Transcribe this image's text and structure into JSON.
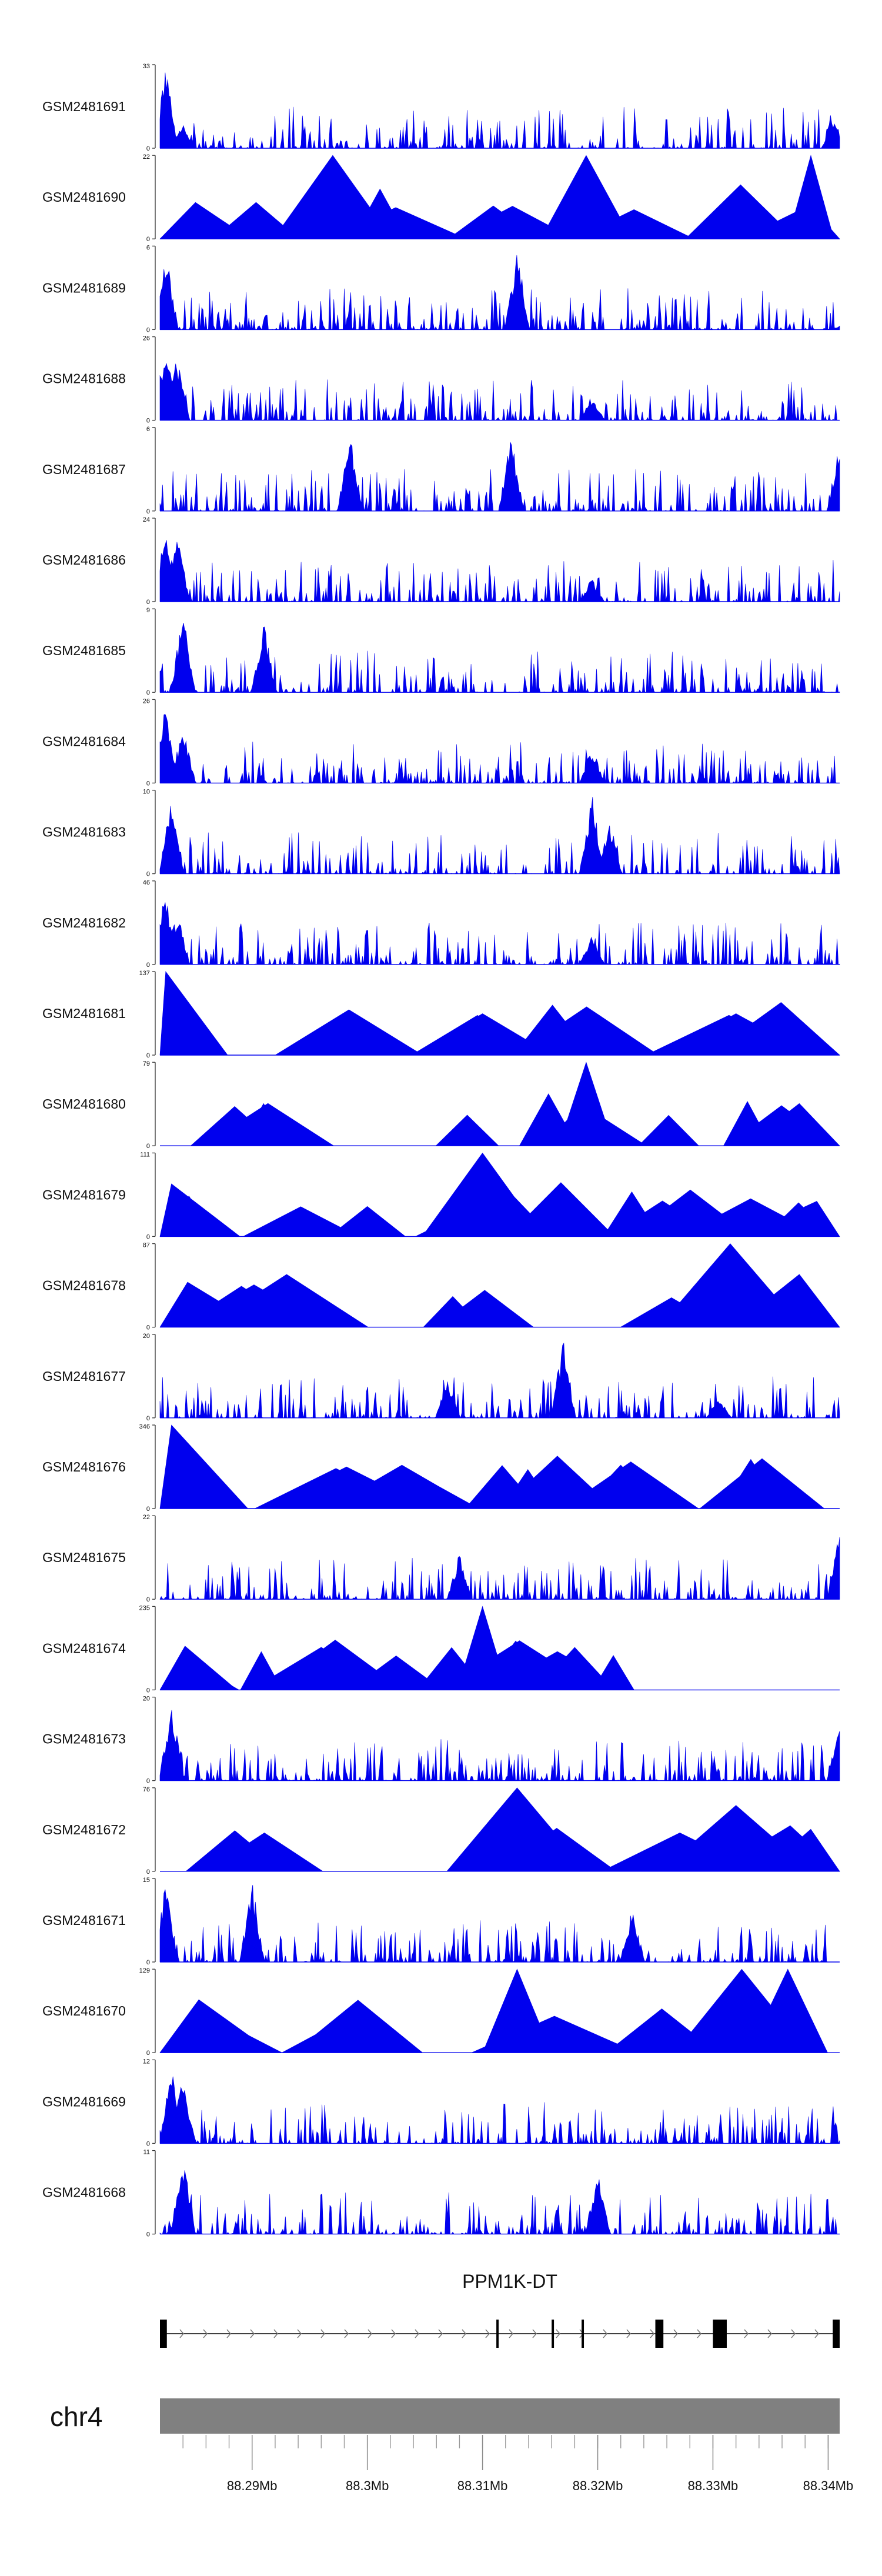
{
  "chart_data": {
    "type": "area",
    "title": "",
    "colors": {
      "track": "#0000ee",
      "axis": "#333333",
      "ideogram": "#808080",
      "gene": "#000000"
    },
    "region": {
      "chromosome": "chr4",
      "start": 88282000,
      "end": 88341000
    },
    "tracks": [
      {
        "name": "GSM2481691",
        "ymax": 33,
        "pattern": "dense",
        "peaks": [
          [
            88282500,
            33
          ],
          [
            88284000,
            10
          ],
          [
            88340500,
            12
          ]
        ]
      },
      {
        "name": "GSM2481690",
        "ymax": 22,
        "pattern": "sparse",
        "peaks": [
          [
            88297000,
            22
          ],
          [
            88319000,
            22
          ],
          [
            88338500,
            22
          ]
        ]
      },
      {
        "name": "GSM2481689",
        "ymax": 6,
        "pattern": "dense",
        "peaks": [
          [
            88282500,
            6
          ],
          [
            88313000,
            6
          ]
        ]
      },
      {
        "name": "GSM2481688",
        "ymax": 26,
        "pattern": "dense",
        "peaks": [
          [
            88282500,
            26
          ],
          [
            88283500,
            21
          ],
          [
            88319500,
            8
          ]
        ]
      },
      {
        "name": "GSM2481687",
        "ymax": 6,
        "pattern": "dense",
        "peaks": [
          [
            88298500,
            6
          ],
          [
            88312500,
            6
          ],
          [
            88341000,
            5
          ]
        ]
      },
      {
        "name": "GSM2481686",
        "ymax": 24,
        "pattern": "dense",
        "peaks": [
          [
            88282500,
            24
          ],
          [
            88283500,
            20
          ],
          [
            88319500,
            7
          ]
        ]
      },
      {
        "name": "GSM2481685",
        "ymax": 9,
        "pattern": "dense",
        "peaks": [
          [
            88284000,
            9
          ],
          [
            88291000,
            8
          ]
        ]
      },
      {
        "name": "GSM2481684",
        "ymax": 26,
        "pattern": "dense",
        "peaks": [
          [
            88282500,
            26
          ],
          [
            88284000,
            20
          ],
          [
            88319500,
            12
          ]
        ]
      },
      {
        "name": "GSM2481683",
        "ymax": 10,
        "pattern": "dense",
        "peaks": [
          [
            88283000,
            10
          ],
          [
            88319500,
            10
          ],
          [
            88321000,
            7
          ]
        ]
      },
      {
        "name": "GSM2481682",
        "ymax": 46,
        "pattern": "dense",
        "peaks": [
          [
            88282500,
            46
          ],
          [
            88283500,
            30
          ],
          [
            88319500,
            17
          ]
        ]
      },
      {
        "name": "GSM2481681",
        "ymax": 137,
        "pattern": "sparse",
        "peaks": [
          [
            88282500,
            137
          ],
          [
            88310000,
            68
          ],
          [
            88332000,
            68
          ]
        ]
      },
      {
        "name": "GSM2481680",
        "ymax": 79,
        "pattern": "sparse",
        "peaks": [
          [
            88291000,
            40
          ],
          [
            88319000,
            79
          ],
          [
            88337500,
            40
          ]
        ]
      },
      {
        "name": "GSM2481679",
        "ymax": 111,
        "pattern": "sparse",
        "peaks": [
          [
            88283000,
            70
          ],
          [
            88310000,
            111
          ],
          [
            88300000,
            40
          ]
        ]
      },
      {
        "name": "GSM2481678",
        "ymax": 87,
        "pattern": "sparse",
        "peaks": [
          [
            88293000,
            55
          ],
          [
            88331500,
            87
          ],
          [
            88337500,
            55
          ]
        ]
      },
      {
        "name": "GSM2481677",
        "ymax": 20,
        "pattern": "dense",
        "peaks": [
          [
            88307000,
            10
          ],
          [
            88317000,
            20
          ],
          [
            88330500,
            5
          ]
        ]
      },
      {
        "name": "GSM2481676",
        "ymax": 346,
        "pattern": "sparse",
        "peaks": [
          [
            88283000,
            346
          ],
          [
            88303000,
            180
          ],
          [
            88322000,
            180
          ]
        ]
      },
      {
        "name": "GSM2481675",
        "ymax": 22,
        "pattern": "dense",
        "peaks": [
          [
            88308000,
            12
          ],
          [
            88341000,
            22
          ]
        ]
      },
      {
        "name": "GSM2481674",
        "ymax": 235,
        "pattern": "sparse",
        "peaks": [
          [
            88310000,
            235
          ],
          [
            88296000,
            120
          ],
          [
            88318000,
            120
          ]
        ]
      },
      {
        "name": "GSM2481673",
        "ymax": 20,
        "pattern": "dense",
        "peaks": [
          [
            88283000,
            20
          ],
          [
            88341000,
            16
          ]
        ]
      },
      {
        "name": "GSM2481672",
        "ymax": 76,
        "pattern": "sparse",
        "peaks": [
          [
            88313000,
            76
          ],
          [
            88332000,
            60
          ]
        ]
      },
      {
        "name": "GSM2481671",
        "ymax": 15,
        "pattern": "dense",
        "peaks": [
          [
            88282500,
            15
          ],
          [
            88290000,
            15
          ],
          [
            88323000,
            10
          ]
        ]
      },
      {
        "name": "GSM2481670",
        "ymax": 129,
        "pattern": "sparse",
        "peaks": [
          [
            88313000,
            129
          ],
          [
            88332500,
            129
          ],
          [
            88336500,
            129
          ]
        ]
      },
      {
        "name": "GSM2481669",
        "ymax": 12,
        "pattern": "dense",
        "peaks": [
          [
            88283000,
            12
          ],
          [
            88284000,
            10
          ]
        ]
      },
      {
        "name": "GSM2481668",
        "ymax": 11,
        "pattern": "dense",
        "peaks": [
          [
            88284000,
            11
          ],
          [
            88320000,
            9
          ]
        ]
      }
    ],
    "gene": {
      "name": "PPM1K-DT",
      "start": 88282000,
      "end": 88341000,
      "exons": [
        [
          88282000,
          88282600
        ],
        [
          88311200,
          88311400
        ],
        [
          88316000,
          88316200
        ],
        [
          88318600,
          88318800
        ],
        [
          88325000,
          88325700
        ],
        [
          88330000,
          88331200
        ],
        [
          88340400,
          88341000
        ]
      ]
    },
    "axis": {
      "label": "chr4",
      "ticks": [
        {
          "value": 88290000,
          "label": "88.29Mb"
        },
        {
          "value": 88300000,
          "label": "88.3Mb"
        },
        {
          "value": 88310000,
          "label": "88.31Mb"
        },
        {
          "value": 88320000,
          "label": "88.32Mb"
        },
        {
          "value": 88330000,
          "label": "88.33Mb"
        },
        {
          "value": 88340000,
          "label": "88.34Mb"
        }
      ],
      "minor_step": 2000
    }
  }
}
